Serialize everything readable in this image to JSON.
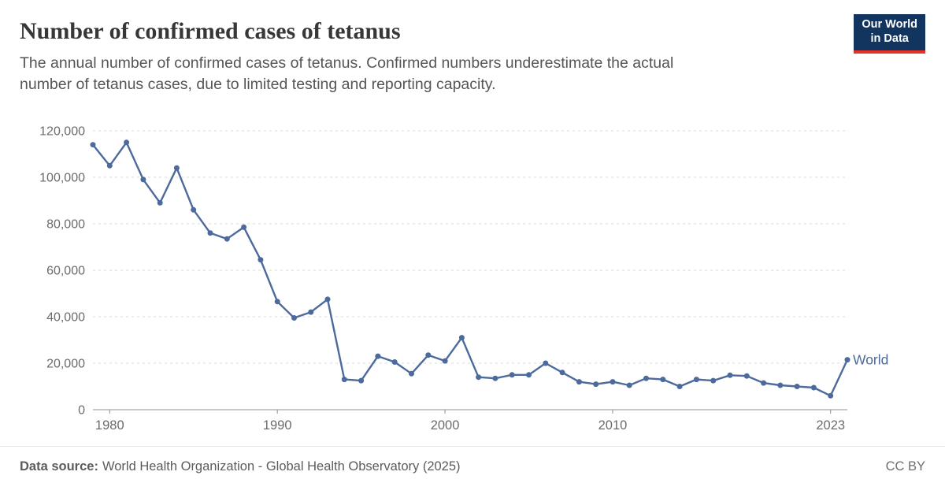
{
  "header": {
    "title": "Number of confirmed cases of tetanus",
    "subtitle_lines": [
      "The annual number of confirmed cases of tetanus. Confirmed numbers underestimate the actual",
      "number of tetanus cases, due to limited testing and reporting capacity."
    ],
    "logo": {
      "line1": "Our World",
      "line2": "in Data",
      "bg": "#12355f",
      "accent": "#e2342a"
    }
  },
  "chart_data": {
    "type": "line",
    "title": "Number of confirmed cases of tetanus",
    "x": [
      1979,
      1980,
      1981,
      1982,
      1983,
      1984,
      1985,
      1986,
      1987,
      1988,
      1989,
      1990,
      1991,
      1992,
      1993,
      1994,
      1995,
      1996,
      1997,
      1998,
      1999,
      2000,
      2001,
      2002,
      2003,
      2004,
      2005,
      2006,
      2007,
      2008,
      2009,
      2010,
      2011,
      2012,
      2013,
      2014,
      2015,
      2016,
      2017,
      2018,
      2019,
      2020,
      2021,
      2022,
      2023,
      2024
    ],
    "series": [
      {
        "name": "World",
        "color": "#4c6a9c",
        "values": [
          114000,
          105000,
          115000,
          99000,
          89000,
          104000,
          86000,
          76000,
          73500,
          78500,
          64500,
          46500,
          39500,
          42000,
          47500,
          13000,
          12500,
          23000,
          20500,
          15500,
          23500,
          21000,
          31000,
          14000,
          13500,
          15000,
          15000,
          20000,
          16000,
          12000,
          11000,
          12000,
          10500,
          13500,
          13000,
          10000,
          13000,
          12500,
          14800,
          14500,
          11500,
          10500,
          10000,
          9500,
          6000,
          21500
        ]
      }
    ],
    "xlabel": "",
    "ylabel": "",
    "ylim": [
      0,
      120000
    ],
    "yticks": [
      0,
      20000,
      40000,
      60000,
      80000,
      100000,
      120000
    ],
    "ytick_labels": [
      "0",
      "20,000",
      "40,000",
      "60,000",
      "80,000",
      "100,000",
      "120,000"
    ],
    "xticks": [
      1980,
      1990,
      2000,
      2010,
      2023
    ],
    "xtick_labels": [
      "1980",
      "1990",
      "2000",
      "2010",
      "2023"
    ],
    "grid": "horizontal-dashed",
    "legend": "line-end-label",
    "marker": "circle"
  },
  "footer": {
    "source_label": "Data source:",
    "source_text": "World Health Organization - Global Health Observatory (2025)",
    "license": "CC BY"
  }
}
